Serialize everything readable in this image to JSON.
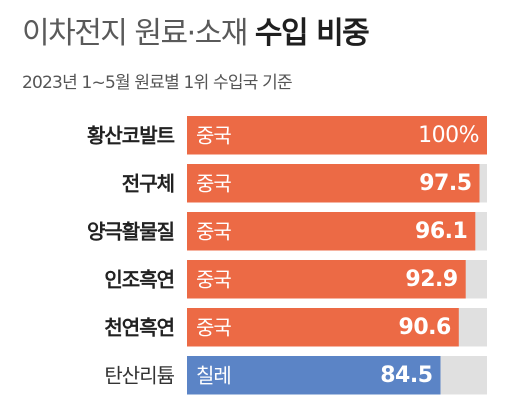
{
  "title": {
    "regular": "이차전지 원료·소재",
    "bold": "수입 비중"
  },
  "subtitle": "2023년 1~5월 원료별 1위 수입국 기준",
  "colors": {
    "china": "#ec6a45",
    "chile": "#5b84c6",
    "track": "#e0e0e0"
  },
  "chart_data": {
    "type": "bar",
    "orientation": "horizontal",
    "unit": "%",
    "xlim": [
      0,
      100
    ],
    "categories": [
      "황산코발트",
      "전구체",
      "양극활물질",
      "인조흑연",
      "천연흑연",
      "탄산리튬"
    ],
    "countries": [
      "중국",
      "중국",
      "중국",
      "중국",
      "중국",
      "칠레"
    ],
    "values": [
      100,
      97.5,
      96.1,
      92.9,
      90.6,
      84.5
    ],
    "value_labels": [
      "100%",
      "97.5",
      "96.1",
      "92.9",
      "90.6",
      "84.5"
    ]
  }
}
